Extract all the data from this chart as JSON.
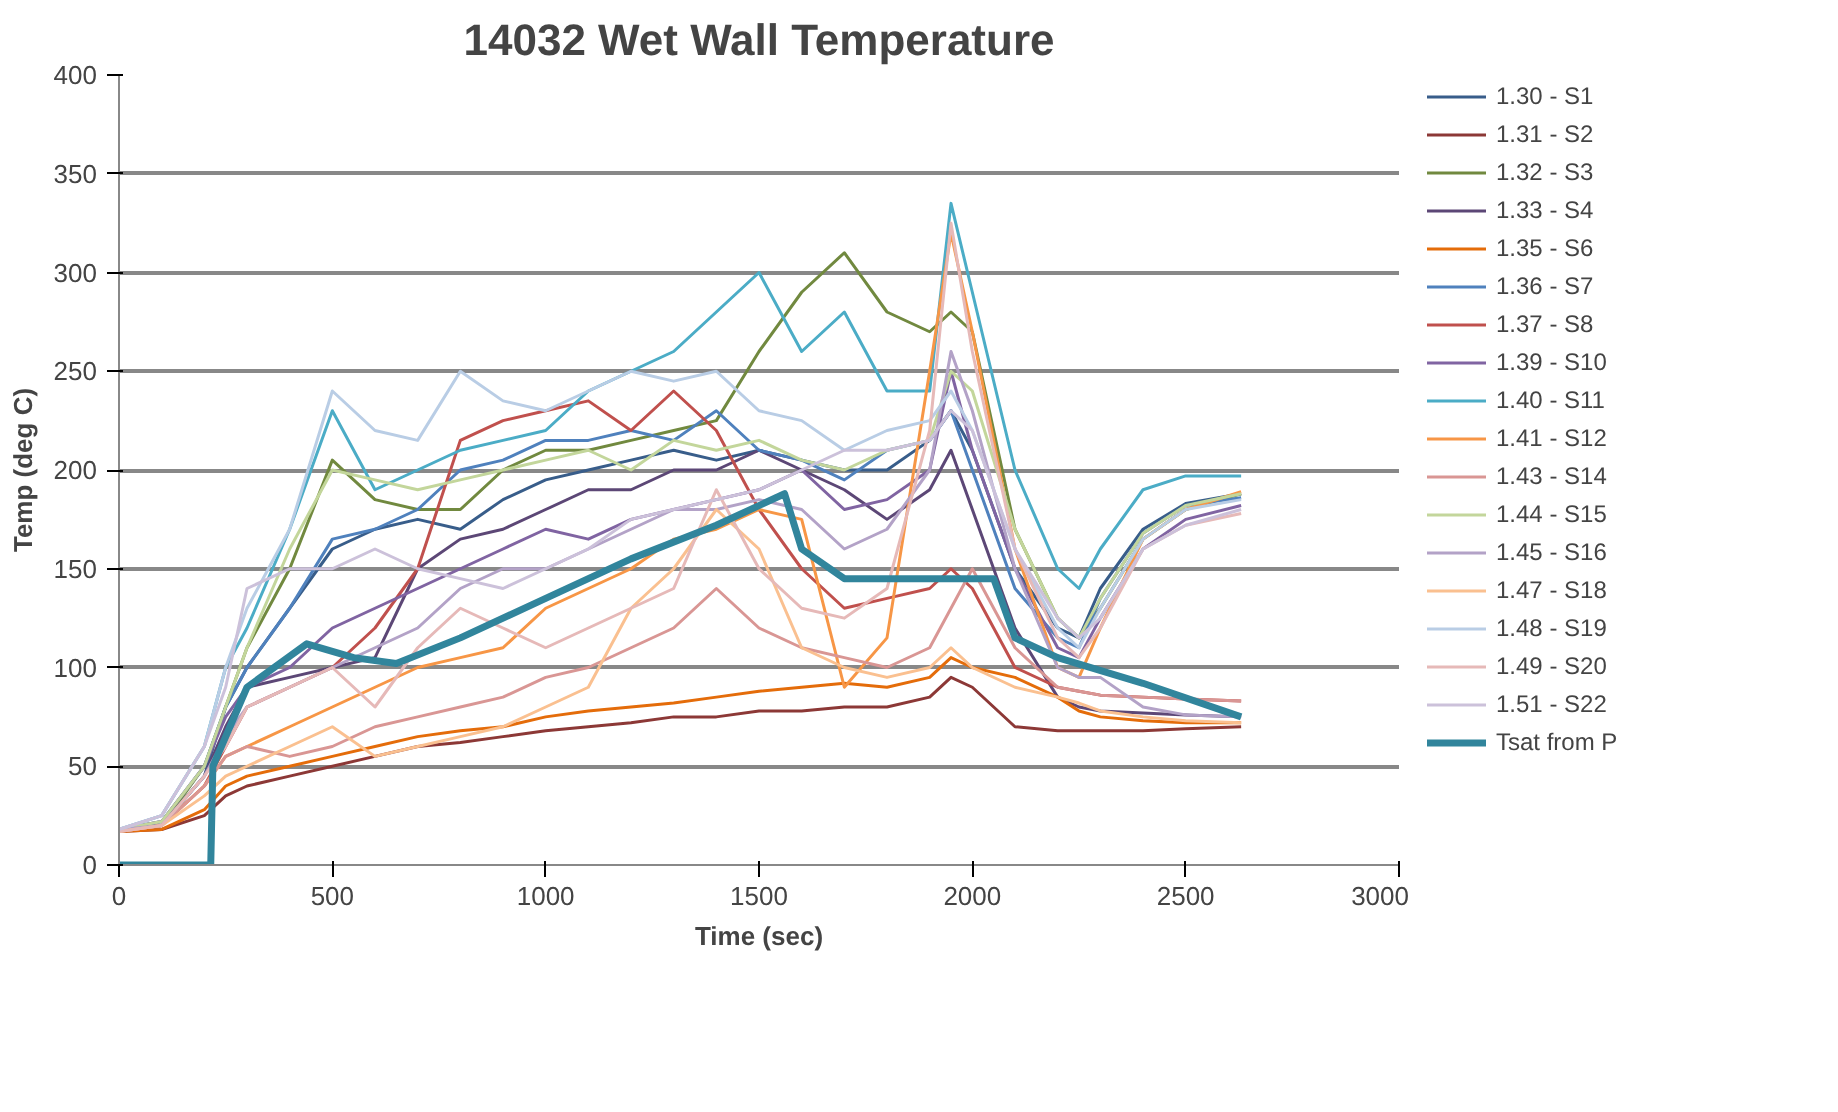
{
  "chart_data": {
    "type": "line",
    "title": "14032 Wet Wall Temperature",
    "xlabel": "Time (sec)",
    "ylabel": "Temp (deg C)",
    "x": [
      0,
      100,
      200,
      250,
      300,
      400,
      500,
      600,
      700,
      800,
      900,
      1000,
      1100,
      1200,
      1300,
      1400,
      1500,
      1600,
      1700,
      1800,
      1900,
      1950,
      2000,
      2100,
      2200,
      2250,
      2300,
      2400,
      2500,
      2630
    ],
    "xlim": [
      0,
      3000
    ],
    "xticks": [
      0,
      500,
      1000,
      1500,
      2000,
      2500,
      3000
    ],
    "ylim": [
      0,
      400
    ],
    "yticks": [
      0,
      50,
      100,
      150,
      200,
      250,
      300,
      350,
      400
    ],
    "grid": "y",
    "legend": "right",
    "line_style": "solid",
    "marker": "none",
    "series": [
      {
        "name": "1.30 - S1",
        "color": "#385d8a",
        "values": [
          18,
          20,
          45,
          80,
          100,
          130,
          160,
          170,
          175,
          170,
          185,
          195,
          200,
          205,
          210,
          205,
          210,
          205,
          200,
          200,
          215,
          230,
          210,
          150,
          120,
          115,
          140,
          170,
          183,
          188
        ]
      },
      {
        "name": "1.31 - S2",
        "color": "#8c3836",
        "values": [
          17,
          18,
          25,
          35,
          40,
          45,
          50,
          55,
          60,
          62,
          65,
          68,
          70,
          72,
          75,
          75,
          78,
          78,
          80,
          80,
          85,
          95,
          90,
          70,
          68,
          68,
          68,
          68,
          69,
          70
        ]
      },
      {
        "name": "1.32 - S3",
        "color": "#71893f",
        "values": [
          18,
          20,
          50,
          80,
          110,
          150,
          205,
          185,
          180,
          180,
          200,
          210,
          210,
          215,
          220,
          225,
          260,
          290,
          310,
          280,
          270,
          280,
          270,
          170,
          125,
          115,
          130,
          165,
          180,
          188
        ]
      },
      {
        "name": "1.33 - S4",
        "color": "#5c4776",
        "values": [
          18,
          20,
          45,
          70,
          90,
          95,
          100,
          105,
          150,
          165,
          170,
          180,
          190,
          190,
          200,
          200,
          210,
          200,
          190,
          175,
          190,
          210,
          180,
          120,
          85,
          80,
          78,
          77,
          76,
          75
        ]
      },
      {
        "name": "1.35 - S6",
        "color": "#e46c0a",
        "values": [
          17,
          18,
          28,
          40,
          45,
          50,
          55,
          60,
          65,
          68,
          70,
          75,
          78,
          80,
          82,
          85,
          88,
          90,
          92,
          90,
          95,
          105,
          100,
          95,
          85,
          78,
          75,
          73,
          72,
          72
        ]
      },
      {
        "name": "1.36 - S7",
        "color": "#4f81bd",
        "values": [
          18,
          22,
          50,
          80,
          100,
          130,
          165,
          170,
          180,
          200,
          205,
          215,
          215,
          220,
          215,
          230,
          210,
          205,
          195,
          210,
          215,
          230,
          200,
          140,
          115,
          110,
          135,
          168,
          182,
          186
        ]
      },
      {
        "name": "1.37 - S8",
        "color": "#c0504d",
        "values": [
          17,
          20,
          40,
          60,
          80,
          90,
          100,
          120,
          150,
          215,
          225,
          230,
          235,
          220,
          240,
          220,
          180,
          150,
          130,
          135,
          140,
          150,
          140,
          100,
          90,
          88,
          86,
          85,
          84,
          83
        ]
      },
      {
        "name": "1.39 - S10",
        "color": "#8064a2",
        "values": [
          18,
          22,
          50,
          75,
          90,
          100,
          120,
          130,
          140,
          150,
          160,
          170,
          165,
          175,
          180,
          185,
          190,
          200,
          180,
          185,
          200,
          250,
          210,
          150,
          110,
          105,
          125,
          160,
          175,
          182
        ]
      },
      {
        "name": "1.40 - S11",
        "color": "#4bacc6",
        "values": [
          18,
          25,
          60,
          100,
          120,
          170,
          230,
          190,
          200,
          210,
          215,
          220,
          240,
          250,
          260,
          280,
          300,
          260,
          280,
          240,
          240,
          335,
          290,
          200,
          150,
          140,
          160,
          190,
          197,
          197
        ]
      },
      {
        "name": "1.41 - S12",
        "color": "#f79646",
        "values": [
          17,
          20,
          40,
          55,
          60,
          70,
          80,
          90,
          100,
          105,
          110,
          130,
          140,
          150,
          165,
          170,
          180,
          175,
          90,
          115,
          250,
          320,
          270,
          160,
          100,
          95,
          120,
          165,
          180,
          189
        ]
      },
      {
        "name": "1.43 - S14",
        "color": "#d99694",
        "values": [
          17,
          20,
          40,
          55,
          60,
          55,
          60,
          70,
          75,
          80,
          85,
          95,
          100,
          110,
          120,
          140,
          120,
          110,
          105,
          100,
          110,
          130,
          150,
          110,
          90,
          88,
          86,
          85,
          84,
          83
        ]
      },
      {
        "name": "1.44 - S15",
        "color": "#c3d69b",
        "values": [
          18,
          22,
          50,
          80,
          110,
          160,
          200,
          195,
          190,
          195,
          200,
          205,
          210,
          200,
          215,
          210,
          215,
          205,
          200,
          210,
          215,
          250,
          240,
          170,
          125,
          115,
          135,
          168,
          182,
          188
        ]
      },
      {
        "name": "1.45 - S16",
        "color": "#b3a2c7",
        "values": [
          18,
          20,
          45,
          65,
          80,
          90,
          100,
          110,
          120,
          140,
          150,
          150,
          160,
          170,
          180,
          180,
          185,
          180,
          160,
          170,
          200,
          260,
          230,
          150,
          100,
          95,
          95,
          80,
          76,
          75
        ]
      },
      {
        "name": "1.47 - S18",
        "color": "#fac090",
        "values": [
          17,
          20,
          35,
          45,
          50,
          60,
          70,
          55,
          60,
          65,
          70,
          80,
          90,
          130,
          150,
          180,
          160,
          110,
          100,
          95,
          100,
          110,
          100,
          90,
          85,
          82,
          78,
          75,
          73,
          72
        ]
      },
      {
        "name": "1.48 - S19",
        "color": "#b9cde5",
        "values": [
          18,
          25,
          60,
          100,
          130,
          170,
          240,
          220,
          215,
          250,
          235,
          230,
          240,
          250,
          245,
          250,
          230,
          225,
          210,
          220,
          225,
          240,
          220,
          160,
          120,
          110,
          130,
          165,
          180,
          185
        ]
      },
      {
        "name": "1.49 - S20",
        "color": "#e6b9b8",
        "values": [
          17,
          20,
          45,
          60,
          80,
          90,
          100,
          80,
          110,
          130,
          120,
          110,
          120,
          130,
          140,
          190,
          150,
          130,
          125,
          140,
          220,
          325,
          260,
          160,
          115,
          105,
          120,
          160,
          172,
          178
        ]
      },
      {
        "name": "1.51 - S22",
        "color": "#ccc1da",
        "values": [
          18,
          25,
          60,
          90,
          140,
          150,
          150,
          160,
          150,
          145,
          140,
          150,
          160,
          175,
          180,
          185,
          190,
          200,
          210,
          210,
          215,
          230,
          220,
          160,
          125,
          115,
          125,
          160,
          172,
          180
        ]
      },
      {
        "name": "Tsat from P",
        "color": "#31859c",
        "x": [
          0,
          215,
          220,
          300,
          440,
          550,
          650,
          800,
          1000,
          1200,
          1400,
          1560,
          1600,
          1700,
          2050,
          2100,
          2200,
          2400,
          2630
        ],
        "values": [
          0,
          0,
          50,
          90,
          112,
          105,
          102,
          115,
          135,
          155,
          172,
          188,
          160,
          145,
          145,
          115,
          105,
          92,
          75
        ]
      }
    ]
  }
}
